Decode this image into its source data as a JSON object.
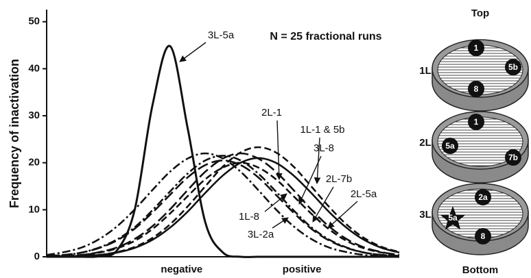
{
  "chart_data": {
    "type": "line",
    "y_label": "Frequency of inactivation",
    "annotation": "N = 25 fractional runs",
    "xlim": [
      0,
      10
    ],
    "ylim": [
      0,
      52
    ],
    "xticks": [
      {
        "value": 3.83,
        "label": "negative"
      },
      {
        "value": 7.24,
        "label": "positive"
      }
    ],
    "yticks": [
      0,
      10,
      20,
      30,
      40,
      50
    ],
    "x": [
      0,
      0.5,
      1,
      1.5,
      2,
      2.5,
      3,
      3.5,
      4,
      4.5,
      5,
      5.5,
      6,
      6.5,
      7,
      7.5,
      8,
      8.5,
      9,
      9.5,
      10
    ],
    "series": [
      {
        "name": "3L-5a",
        "color": "#111111",
        "style": "solid",
        "values": [
          0,
          0,
          0,
          0.1,
          1.4,
          10.1,
          32.2,
          44.8,
          27.3,
          7.3,
          0.9,
          0,
          0,
          0,
          0,
          0,
          0,
          0,
          0,
          0,
          0
        ]
      },
      {
        "name": "2L-1",
        "color": "#111111",
        "style": "dashed",
        "values": [
          0,
          0.1,
          0.2,
          0.4,
          1.0,
          2.1,
          4.0,
          6.9,
          10.7,
          15.0,
          19.2,
          22.2,
          23.3,
          22.2,
          19.2,
          15.0,
          10.7,
          6.9,
          4.0,
          2.1,
          1.0
        ]
      },
      {
        "name": "1L-1 & 5b",
        "color": "#111111",
        "style": "longdash",
        "values": [
          0.1,
          0.2,
          0.4,
          1.0,
          2.0,
          3.8,
          6.5,
          10.1,
          14.2,
          18.1,
          20.9,
          22,
          20.9,
          18.1,
          14.2,
          10.1,
          6.5,
          3.8,
          2.0,
          1.0,
          0.4
        ]
      },
      {
        "name": "3L-8",
        "color": "#111111",
        "style": "solid",
        "values": [
          0,
          0.1,
          0.2,
          0.4,
          0.9,
          1.9,
          3.6,
          6.2,
          9.6,
          13.6,
          17.3,
          20.0,
          21,
          20.0,
          17.3,
          13.6,
          9.6,
          6.2,
          3.6,
          1.9,
          0.9
        ]
      },
      {
        "name": "2L-7b",
        "color": "#111111",
        "style": "dashed",
        "values": [
          0.1,
          0.2,
          0.4,
          0.9,
          1.8,
          3.4,
          5.9,
          9.2,
          12.9,
          16.5,
          19.0,
          20,
          19.0,
          16.5,
          12.9,
          9.2,
          5.9,
          3.4,
          1.8,
          0.9,
          0.4
        ]
      },
      {
        "name": "2L-5a",
        "color": "#111111",
        "style": "longdash",
        "values": [
          0.2,
          0.4,
          0.9,
          1.9,
          3.5,
          6.0,
          9.4,
          13.2,
          16.9,
          19.5,
          20.5,
          19.5,
          16.9,
          13.2,
          9.4,
          6.0,
          3.5,
          1.9,
          0.9,
          0.4,
          0.2
        ]
      },
      {
        "name": "1L-8",
        "color": "#111111",
        "style": "dashdot",
        "values": [
          0.2,
          0.4,
          0.9,
          2.0,
          3.7,
          6.3,
          9.9,
          13.9,
          17.7,
          20.5,
          21.5,
          20.5,
          17.7,
          13.9,
          9.9,
          6.3,
          3.7,
          2.0,
          0.9,
          0.4,
          0.2
        ]
      },
      {
        "name": "3L-2a",
        "color": "#111111",
        "style": "dashdot",
        "values": [
          0.4,
          1.0,
          2.0,
          3.8,
          6.5,
          10.1,
          14.2,
          18.1,
          20.9,
          22,
          20.9,
          18.1,
          14.2,
          10.1,
          6.5,
          3.8,
          2.0,
          1.0,
          0.4,
          0.2,
          0.1
        ]
      }
    ]
  },
  "diagram": {
    "top": "Top",
    "bottom": "Bottom",
    "layers": [
      {
        "label": "1L",
        "sites": [
          "1",
          "5b",
          "8"
        ]
      },
      {
        "label": "2L",
        "sites": [
          "1",
          "5a",
          "7b"
        ]
      },
      {
        "label": "3L",
        "sites": [
          "2a",
          "5a",
          "8"
        ]
      }
    ]
  }
}
